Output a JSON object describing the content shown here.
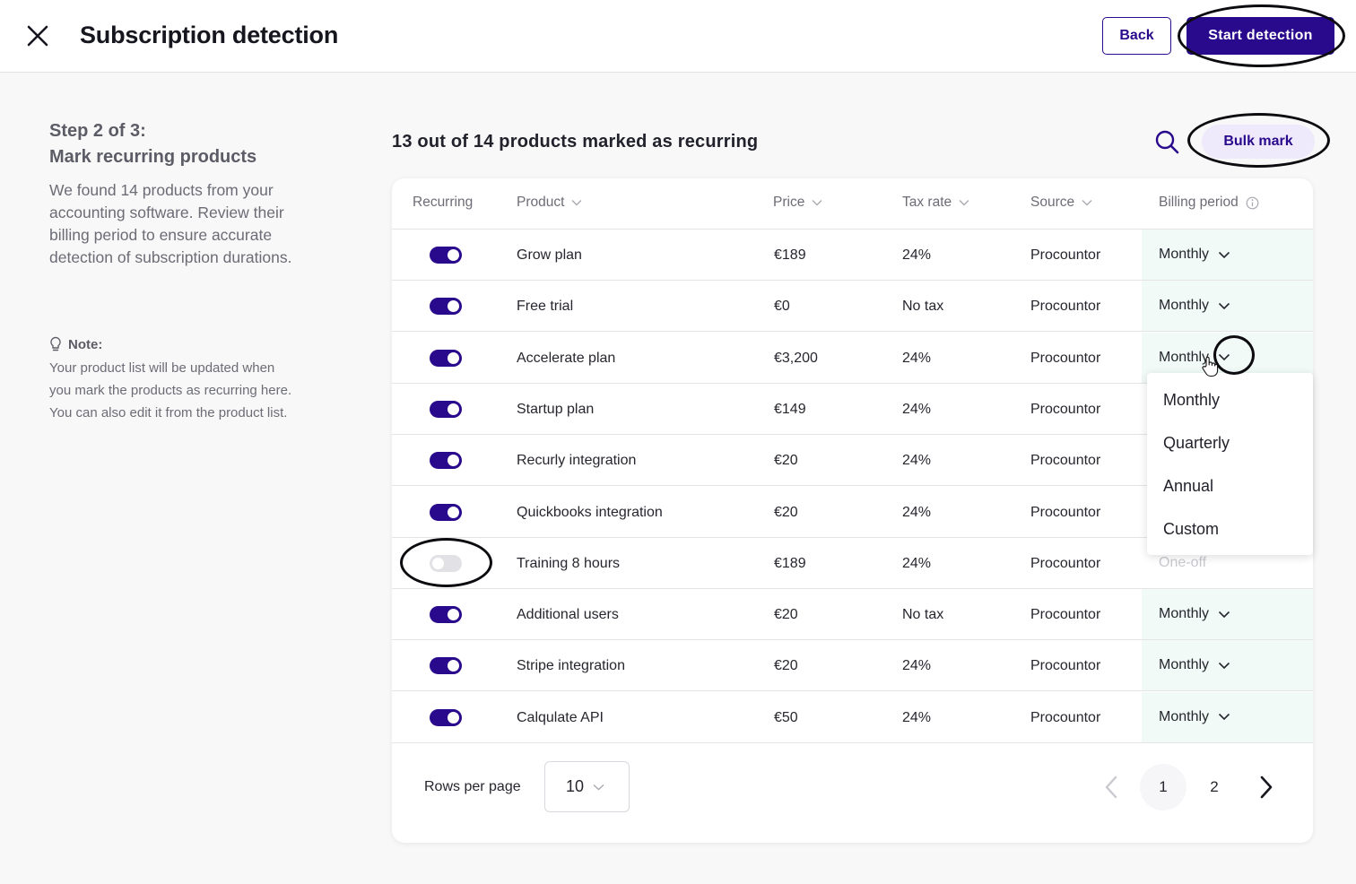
{
  "header": {
    "title": "Subscription detection",
    "back_label": "Back",
    "start_label": "Start detection",
    "close_icon": "close-icon"
  },
  "sidebar": {
    "step_title": "Step 2 of 3:",
    "step_subtitle": "Mark recurring products",
    "description": "We found 14 products from your accounting software. Review their billing period to ensure accurate detection of subscription durations.",
    "note_label": "Note:",
    "note_text": "Your product list will be updated when you mark the products as recurring here. You can also edit it from the product list.",
    "note_icon": "lightbulb-icon"
  },
  "main": {
    "summary": "13 out of 14 products marked as recurring",
    "search_icon": "search-icon",
    "bulk_label": "Bulk mark"
  },
  "table": {
    "columns": [
      "Recurring",
      "Product",
      "Price",
      "Tax rate",
      "Source",
      "Billing period"
    ],
    "rows": [
      {
        "recurring": true,
        "product": "Grow plan",
        "price": "€189",
        "tax": "24%",
        "source": "Procountor",
        "billing": "Monthly"
      },
      {
        "recurring": true,
        "product": "Free trial",
        "price": "€0",
        "tax": "No tax",
        "source": "Procountor",
        "billing": "Monthly"
      },
      {
        "recurring": true,
        "product": "Accelerate plan",
        "price": "€3,200",
        "tax": "24%",
        "source": "Procountor",
        "billing": "Monthly"
      },
      {
        "recurring": true,
        "product": "Startup plan",
        "price": "€149",
        "tax": "24%",
        "source": "Procountor",
        "billing": ""
      },
      {
        "recurring": true,
        "product": "Recurly integration",
        "price": "€20",
        "tax": "24%",
        "source": "Procountor",
        "billing": ""
      },
      {
        "recurring": true,
        "product": "Quickbooks integration",
        "price": "€20",
        "tax": "24%",
        "source": "Procountor",
        "billing": ""
      },
      {
        "recurring": false,
        "product": "Training 8 hours",
        "price": "€189",
        "tax": "24%",
        "source": "Procountor",
        "billing": "One-off"
      },
      {
        "recurring": true,
        "product": "Additional users",
        "price": "€20",
        "tax": "No tax",
        "source": "Procountor",
        "billing": "Monthly"
      },
      {
        "recurring": true,
        "product": "Stripe integration",
        "price": "€20",
        "tax": "24%",
        "source": "Procountor",
        "billing": "Monthly"
      },
      {
        "recurring": true,
        "product": "Calqulate API",
        "price": "€50",
        "tax": "24%",
        "source": "Procountor",
        "billing": "Monthly"
      }
    ]
  },
  "dropdown": {
    "options": [
      "Monthly",
      "Quarterly",
      "Annual",
      "Custom"
    ]
  },
  "footer": {
    "rows_per_page_label": "Rows per page",
    "rows_per_page_value": "10",
    "pages": [
      "1",
      "2"
    ],
    "current_page": "1"
  },
  "colors": {
    "brand": "#2a0a8c",
    "billing_bg": "#f1faf6",
    "bulk_bg": "#efeafb"
  }
}
